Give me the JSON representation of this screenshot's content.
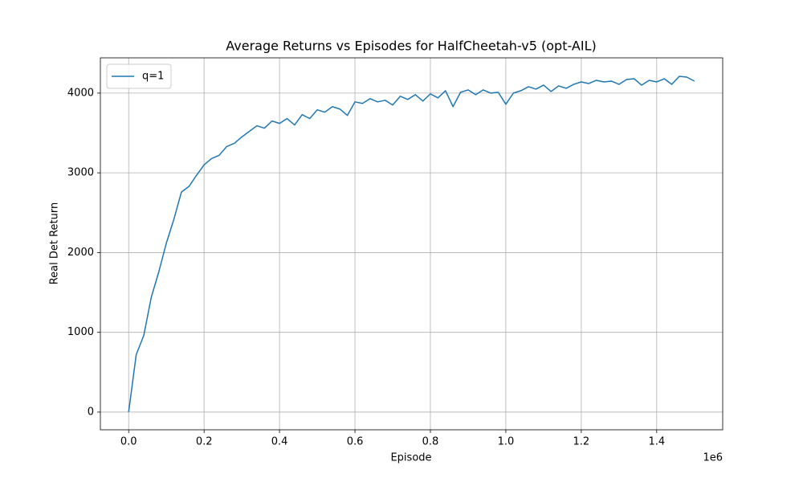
{
  "chart_data": {
    "type": "line",
    "title": "Average Returns vs Episodes for HalfCheetah-v5 (opt-AIL)",
    "x_label": "Episode",
    "y_label": "Real Det Return",
    "x_offset_label": "1e6",
    "x": [
      0,
      20000,
      40000,
      60000,
      80000,
      100000,
      120000,
      140000,
      160000,
      180000,
      200000,
      220000,
      240000,
      260000,
      280000,
      300000,
      320000,
      340000,
      360000,
      380000,
      400000,
      420000,
      440000,
      460000,
      480000,
      500000,
      520000,
      540000,
      560000,
      580000,
      600000,
      620000,
      640000,
      660000,
      680000,
      700000,
      720000,
      740000,
      760000,
      780000,
      800000,
      820000,
      840000,
      860000,
      880000,
      900000,
      920000,
      940000,
      960000,
      980000,
      1000000,
      1020000,
      1040000,
      1060000,
      1080000,
      1100000,
      1120000,
      1140000,
      1160000,
      1180000,
      1200000,
      1220000,
      1240000,
      1260000,
      1280000,
      1300000,
      1320000,
      1340000,
      1360000,
      1380000,
      1400000,
      1420000,
      1440000,
      1460000,
      1480000,
      1500000
    ],
    "series": [
      {
        "name": "q=1",
        "color": "#1f77b4",
        "values": [
          0,
          720,
          960,
          1440,
          1760,
          2120,
          2420,
          2760,
          2830,
          2970,
          3100,
          3180,
          3220,
          3330,
          3370,
          3450,
          3520,
          3590,
          3560,
          3650,
          3620,
          3680,
          3600,
          3730,
          3680,
          3790,
          3760,
          3830,
          3800,
          3720,
          3890,
          3870,
          3930,
          3890,
          3910,
          3850,
          3960,
          3920,
          3980,
          3900,
          3990,
          3940,
          4030,
          3830,
          4010,
          4040,
          3980,
          4040,
          4000,
          4010,
          3860,
          4000,
          4030,
          4080,
          4050,
          4100,
          4020,
          4090,
          4060,
          4110,
          4140,
          4120,
          4160,
          4140,
          4150,
          4110,
          4170,
          4180,
          4100,
          4160,
          4140,
          4180,
          4110,
          4210,
          4200,
          4150
        ]
      }
    ],
    "xlim": [
      -75000,
      1575000
    ],
    "ylim": [
      -222,
      4442
    ],
    "xticks": [
      {
        "value": 0,
        "label": "0.0"
      },
      {
        "value": 200000,
        "label": "0.2"
      },
      {
        "value": 400000,
        "label": "0.4"
      },
      {
        "value": 600000,
        "label": "0.6"
      },
      {
        "value": 800000,
        "label": "0.8"
      },
      {
        "value": 1000000,
        "label": "1.0"
      },
      {
        "value": 1200000,
        "label": "1.2"
      },
      {
        "value": 1400000,
        "label": "1.4"
      }
    ],
    "yticks": [
      0,
      1000,
      2000,
      3000,
      4000
    ],
    "grid": true,
    "legend": "upper left"
  }
}
